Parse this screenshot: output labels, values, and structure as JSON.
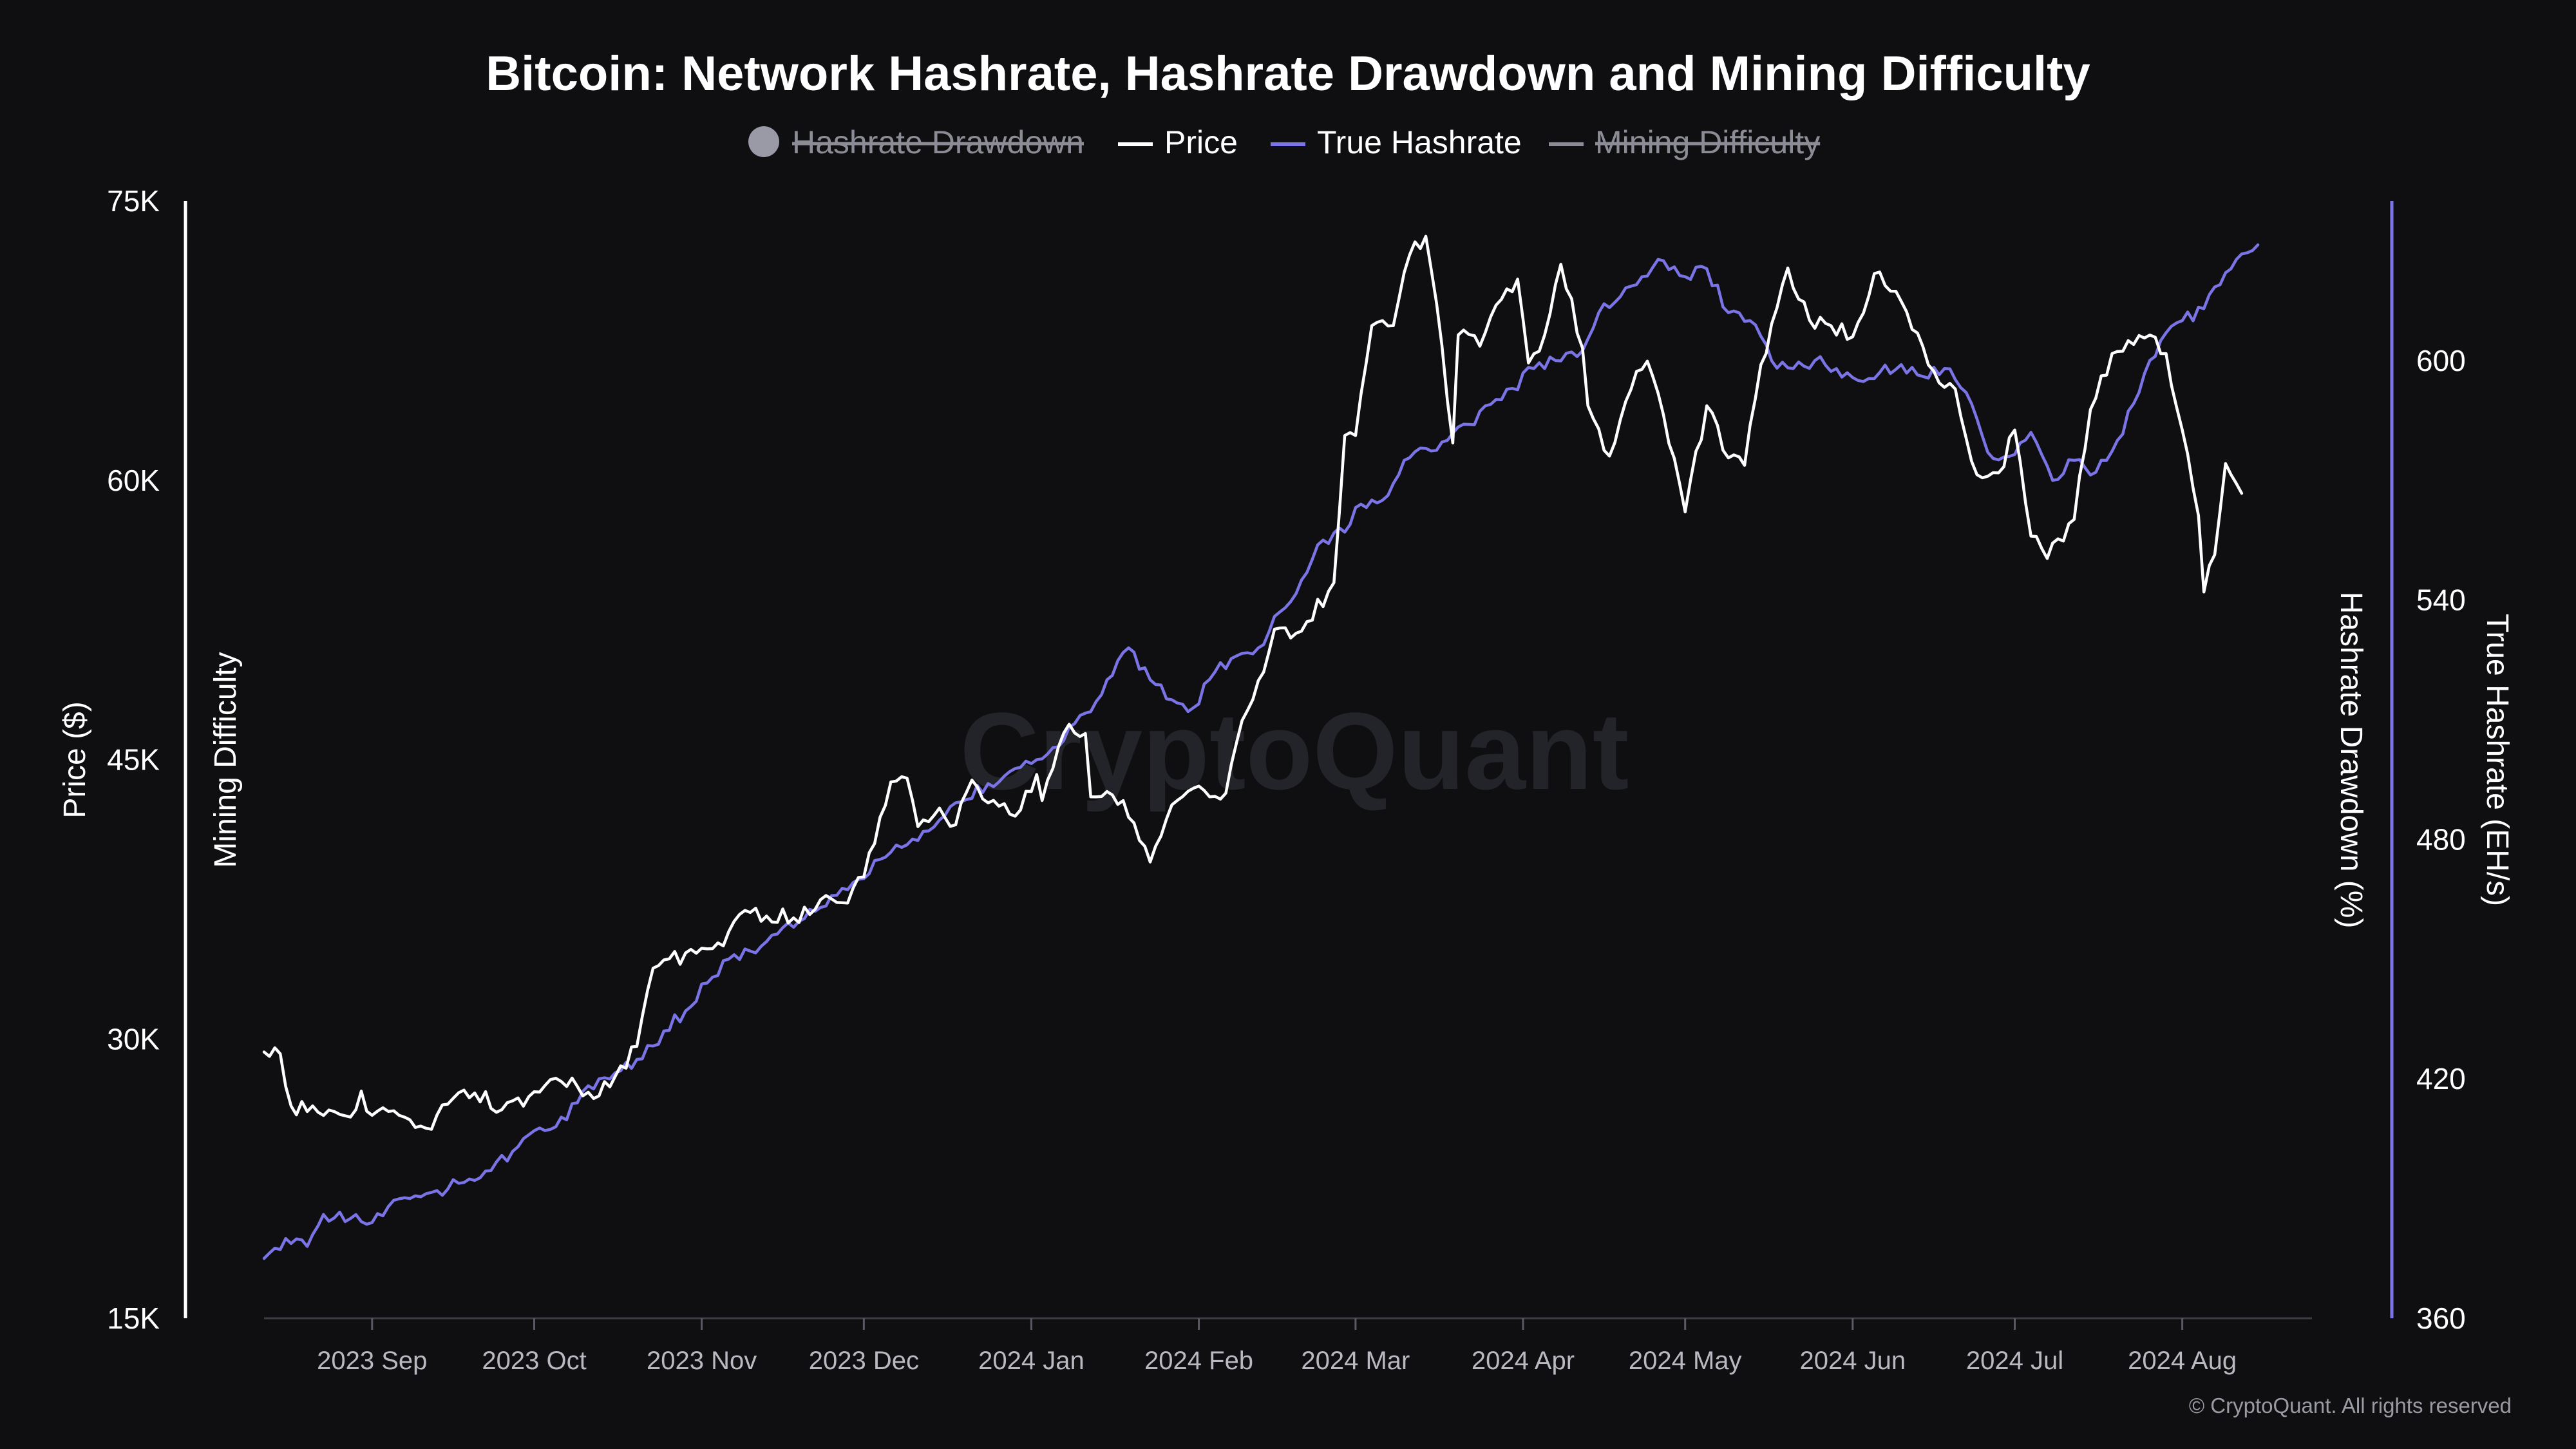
{
  "chart_data": {
    "type": "line",
    "title": "Bitcoin: Network Hashrate, Hashrate Drawdown and Mining Difficulty",
    "legend": {
      "placement": "top-center",
      "items": [
        {
          "label": "Hashrate Drawdown",
          "enabled": false,
          "marker": "circle"
        },
        {
          "label": "Price",
          "enabled": true,
          "marker": "line"
        },
        {
          "label": "True Hashrate",
          "enabled": true,
          "marker": "line"
        },
        {
          "label": "Mining Difficulty",
          "enabled": false,
          "marker": "line"
        }
      ]
    },
    "x_ticks": [
      "2023 Sep",
      "2023 Oct",
      "2023 Nov",
      "2023 Dec",
      "2024 Jan",
      "2024 Feb",
      "2024 Mar",
      "2024 Apr",
      "2024 May",
      "2024 Jun",
      "2024 Jul",
      "2024 Aug"
    ],
    "x_range": [
      "2023-08-12",
      "2024-08-25"
    ],
    "left_axis": {
      "label": "Price ($)",
      "ticks": [
        "75K",
        "60K",
        "45K",
        "30K",
        "15K"
      ],
      "ylim": [
        15000,
        75000
      ]
    },
    "left_axis_secondary": {
      "label": "Mining Difficulty"
    },
    "right_axis_secondary": {
      "label": "Hashrate Drawdown (%)"
    },
    "right_axis": {
      "label": "True Hashrate (EH/s)",
      "ticks": [
        "600",
        "540",
        "480",
        "420",
        "360"
      ],
      "ylim": [
        360,
        640
      ]
    },
    "grid": false,
    "series": [
      {
        "name": "Price",
        "axis": "left",
        "color": "#ffffff",
        "points": [
          [
            "2023-08-12",
            29300
          ],
          [
            "2023-08-15",
            29200
          ],
          [
            "2023-08-17",
            26400
          ],
          [
            "2023-08-20",
            26100
          ],
          [
            "2023-08-25",
            26100
          ],
          [
            "2023-08-29",
            26200
          ],
          [
            "2023-08-30",
            27200
          ],
          [
            "2023-09-01",
            25900
          ],
          [
            "2023-09-07",
            25800
          ],
          [
            "2023-09-11",
            25200
          ],
          [
            "2023-09-15",
            26500
          ],
          [
            "2023-09-20",
            27100
          ],
          [
            "2023-09-25",
            26200
          ],
          [
            "2023-09-30",
            26900
          ],
          [
            "2023-10-03",
            27500
          ],
          [
            "2023-10-08",
            27900
          ],
          [
            "2023-10-12",
            26800
          ],
          [
            "2023-10-16",
            28000
          ],
          [
            "2023-10-20",
            29600
          ],
          [
            "2023-10-23",
            33800
          ],
          [
            "2023-10-26",
            34300
          ],
          [
            "2023-10-31",
            34600
          ],
          [
            "2023-11-05",
            35000
          ],
          [
            "2023-11-09",
            36900
          ],
          [
            "2023-11-13",
            36600
          ],
          [
            "2023-11-18",
            36500
          ],
          [
            "2023-11-24",
            37700
          ],
          [
            "2023-11-28",
            37300
          ],
          [
            "2023-12-01",
            38700
          ],
          [
            "2023-12-04",
            41900
          ],
          [
            "2023-12-06",
            43800
          ],
          [
            "2023-12-09",
            44000
          ],
          [
            "2023-12-11",
            41400
          ],
          [
            "2023-12-15",
            42400
          ],
          [
            "2023-12-18",
            41500
          ],
          [
            "2023-12-21",
            43900
          ],
          [
            "2023-12-26",
            42500
          ],
          [
            "2023-12-30",
            42300
          ],
          [
            "2024-01-02",
            44200
          ],
          [
            "2024-01-03",
            42800
          ],
          [
            "2024-01-08",
            46900
          ],
          [
            "2024-01-11",
            46400
          ],
          [
            "2024-01-12",
            43000
          ],
          [
            "2024-01-16",
            43100
          ],
          [
            "2024-01-20",
            41600
          ],
          [
            "2024-01-23",
            39500
          ],
          [
            "2024-01-26",
            41800
          ],
          [
            "2024-01-30",
            43300
          ],
          [
            "2024-02-03",
            43000
          ],
          [
            "2024-02-06",
            43200
          ],
          [
            "2024-02-09",
            47100
          ],
          [
            "2024-02-13",
            49700
          ],
          [
            "2024-02-15",
            52000
          ],
          [
            "2024-02-20",
            51900
          ],
          [
            "2024-02-26",
            54500
          ],
          [
            "2024-02-28",
            62400
          ],
          [
            "2024-03-01",
            62400
          ],
          [
            "2024-03-04",
            68300
          ],
          [
            "2024-03-08",
            68300
          ],
          [
            "2024-03-11",
            72100
          ],
          [
            "2024-03-14",
            73100
          ],
          [
            "2024-03-16",
            69500
          ],
          [
            "2024-03-19",
            62000
          ],
          [
            "2024-03-20",
            67800
          ],
          [
            "2024-03-24",
            67200
          ],
          [
            "2024-03-27",
            69400
          ],
          [
            "2024-03-31",
            70800
          ],
          [
            "2024-04-02",
            66300
          ],
          [
            "2024-04-05",
            67800
          ],
          [
            "2024-04-08",
            71600
          ],
          [
            "2024-04-12",
            67100
          ],
          [
            "2024-04-13",
            64000
          ],
          [
            "2024-04-17",
            61300
          ],
          [
            "2024-04-21",
            64900
          ],
          [
            "2024-04-24",
            66400
          ],
          [
            "2024-04-27",
            63500
          ],
          [
            "2024-05-01",
            58300
          ],
          [
            "2024-05-05",
            64000
          ],
          [
            "2024-05-09",
            61200
          ],
          [
            "2024-05-12",
            60800
          ],
          [
            "2024-05-15",
            66200
          ],
          [
            "2024-05-20",
            71400
          ],
          [
            "2024-05-24",
            68600
          ],
          [
            "2024-05-28",
            68300
          ],
          [
            "2024-06-01",
            67700
          ],
          [
            "2024-06-05",
            71100
          ],
          [
            "2024-06-10",
            69600
          ],
          [
            "2024-06-15",
            66200
          ],
          [
            "2024-06-20",
            64900
          ],
          [
            "2024-06-24",
            60300
          ],
          [
            "2024-06-28",
            60400
          ],
          [
            "2024-07-01",
            62700
          ],
          [
            "2024-07-04",
            57000
          ],
          [
            "2024-07-07",
            55800
          ],
          [
            "2024-07-12",
            57900
          ],
          [
            "2024-07-15",
            63800
          ],
          [
            "2024-07-19",
            66800
          ],
          [
            "2024-07-22",
            67500
          ],
          [
            "2024-07-26",
            67800
          ],
          [
            "2024-07-29",
            66800
          ],
          [
            "2024-08-02",
            61400
          ],
          [
            "2024-08-04",
            58100
          ],
          [
            "2024-08-05",
            54000
          ],
          [
            "2024-08-07",
            56000
          ],
          [
            "2024-08-09",
            60900
          ],
          [
            "2024-08-12",
            59300
          ]
        ]
      },
      {
        "name": "True Hashrate",
        "axis": "right",
        "color": "#7b74e6",
        "points": [
          [
            "2023-08-12",
            375
          ],
          [
            "2023-08-16",
            380
          ],
          [
            "2023-08-20",
            378
          ],
          [
            "2023-08-23",
            386
          ],
          [
            "2023-08-28",
            385
          ],
          [
            "2023-09-01",
            384
          ],
          [
            "2023-09-04",
            388
          ],
          [
            "2023-09-08",
            390
          ],
          [
            "2023-09-13",
            392
          ],
          [
            "2023-09-18",
            394
          ],
          [
            "2023-09-23",
            397
          ],
          [
            "2023-09-28",
            403
          ],
          [
            "2023-10-01",
            407
          ],
          [
            "2023-10-05",
            408
          ],
          [
            "2023-10-09",
            414
          ],
          [
            "2023-10-13",
            420
          ],
          [
            "2023-10-17",
            422
          ],
          [
            "2023-10-21",
            425
          ],
          [
            "2023-10-25",
            432
          ],
          [
            "2023-10-29",
            437
          ],
          [
            "2023-11-02",
            444
          ],
          [
            "2023-11-06",
            450
          ],
          [
            "2023-11-10",
            452
          ],
          [
            "2023-11-14",
            456
          ],
          [
            "2023-11-18",
            458
          ],
          [
            "2023-11-22",
            462
          ],
          [
            "2023-11-26",
            466
          ],
          [
            "2023-11-30",
            470
          ],
          [
            "2023-12-04",
            475
          ],
          [
            "2023-12-08",
            478
          ],
          [
            "2023-12-12",
            482
          ],
          [
            "2023-12-16",
            486
          ],
          [
            "2023-12-20",
            490
          ],
          [
            "2023-12-24",
            494
          ],
          [
            "2023-12-28",
            497
          ],
          [
            "2024-01-01",
            499
          ],
          [
            "2024-01-05",
            503
          ],
          [
            "2024-01-09",
            509
          ],
          [
            "2024-01-12",
            512
          ],
          [
            "2024-01-15",
            520
          ],
          [
            "2024-01-19",
            528
          ],
          [
            "2024-01-23",
            520
          ],
          [
            "2024-01-27",
            515
          ],
          [
            "2024-01-31",
            513
          ],
          [
            "2024-02-04",
            522
          ],
          [
            "2024-02-08",
            526
          ],
          [
            "2024-02-12",
            528
          ],
          [
            "2024-02-16",
            537
          ],
          [
            "2024-02-20",
            545
          ],
          [
            "2024-02-24",
            555
          ],
          [
            "2024-02-28",
            557
          ],
          [
            "2024-03-02",
            564
          ],
          [
            "2024-03-06",
            565
          ],
          [
            "2024-03-10",
            575
          ],
          [
            "2024-03-14",
            578
          ],
          [
            "2024-03-18",
            580
          ],
          [
            "2024-03-22",
            584
          ],
          [
            "2024-03-26",
            589
          ],
          [
            "2024-03-30",
            593
          ],
          [
            "2024-04-03",
            598
          ],
          [
            "2024-04-07",
            600
          ],
          [
            "2024-04-11",
            601
          ],
          [
            "2024-04-15",
            612
          ],
          [
            "2024-04-19",
            616
          ],
          [
            "2024-04-23",
            621
          ],
          [
            "2024-04-27",
            625
          ],
          [
            "2024-05-01",
            621
          ],
          [
            "2024-05-05",
            623
          ],
          [
            "2024-05-09",
            612
          ],
          [
            "2024-05-13",
            610
          ],
          [
            "2024-05-17",
            600
          ],
          [
            "2024-05-21",
            598
          ],
          [
            "2024-05-25",
            600
          ],
          [
            "2024-05-29",
            598
          ],
          [
            "2024-06-02",
            595
          ],
          [
            "2024-06-06",
            597
          ],
          [
            "2024-06-10",
            599
          ],
          [
            "2024-06-14",
            596
          ],
          [
            "2024-06-18",
            598
          ],
          [
            "2024-06-22",
            592
          ],
          [
            "2024-06-26",
            577
          ],
          [
            "2024-06-30",
            576
          ],
          [
            "2024-07-04",
            582
          ],
          [
            "2024-07-08",
            570
          ],
          [
            "2024-07-12",
            575
          ],
          [
            "2024-07-16",
            572
          ],
          [
            "2024-07-20",
            580
          ],
          [
            "2024-07-24",
            592
          ],
          [
            "2024-07-28",
            605
          ],
          [
            "2024-08-01",
            610
          ],
          [
            "2024-08-05",
            613
          ],
          [
            "2024-08-09",
            622
          ],
          [
            "2024-08-13",
            627
          ],
          [
            "2024-08-15",
            629
          ]
        ]
      }
    ],
    "watermark": "CryptoQuant",
    "credit": "© CryptoQuant. All rights reserved"
  }
}
